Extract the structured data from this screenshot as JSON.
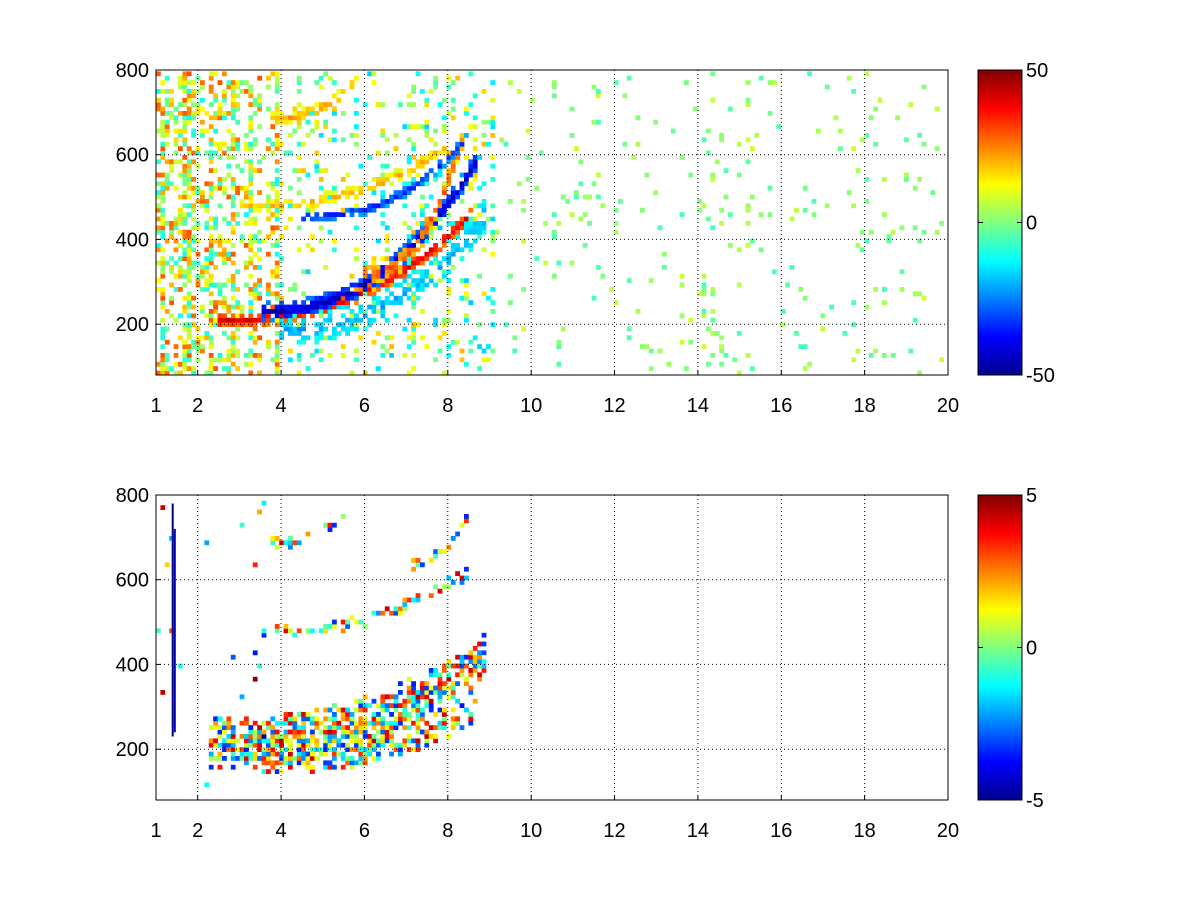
{
  "chart_data": [
    {
      "type": "heatmap",
      "title": "",
      "xlabel": "",
      "ylabel": "",
      "xlim": [
        1,
        20
      ],
      "ylim": [
        80,
        800
      ],
      "grid": true,
      "x_ticks": [
        1,
        2,
        4,
        6,
        8,
        10,
        12,
        14,
        16,
        18,
        20
      ],
      "y_ticks": [
        200,
        400,
        600,
        800
      ],
      "colorbar": {
        "colormap": "jet",
        "range": [
          -50,
          50
        ],
        "ticks": [
          -50,
          0,
          50
        ]
      },
      "background_color": "#ffffff",
      "ridges": [
        {
          "x_start": 2.5,
          "x_end": 8.6,
          "y_start": 210,
          "y_end": 460,
          "value": 40,
          "width": 18,
          "density": 0.95
        },
        {
          "x_start": 3.5,
          "x_end": 8.8,
          "y_start": 232,
          "y_end": 600,
          "value": -45,
          "width": 22,
          "density": 0.95
        },
        {
          "x_start": 4.0,
          "x_end": 9.0,
          "y_start": 190,
          "y_end": 470,
          "value": -20,
          "width": 40,
          "density": 0.55
        },
        {
          "x_start": 6.0,
          "x_end": 8.4,
          "y_start": 320,
          "y_end": 640,
          "value": 30,
          "width": 25,
          "density": 0.85
        },
        {
          "x_start": 3.0,
          "x_end": 8.0,
          "y_start": 480,
          "y_end": 620,
          "value": 20,
          "width": 14,
          "density": 0.7
        },
        {
          "x_start": 4.5,
          "x_end": 8.5,
          "y_start": 455,
          "y_end": 640,
          "value": -35,
          "width": 14,
          "density": 0.8
        },
        {
          "x_start": 3.8,
          "x_end": 5.8,
          "y_start": 690,
          "y_end": 775,
          "value": 22,
          "width": 14,
          "density": 0.8
        }
      ],
      "noise_regions": [
        {
          "x_range": [
            1.0,
            4.0
          ],
          "y_range": [
            80,
            800
          ],
          "value_range": [
            -12,
            30
          ],
          "density": 0.32
        },
        {
          "x_range": [
            4.0,
            9.2
          ],
          "y_range": [
            80,
            800
          ],
          "value_range": [
            -18,
            20
          ],
          "density": 0.12
        },
        {
          "x_range": [
            9.2,
            20.0
          ],
          "y_range": [
            80,
            800
          ],
          "value_range": [
            -6,
            8
          ],
          "density": 0.035
        }
      ]
    },
    {
      "type": "heatmap",
      "title": "",
      "xlabel": "",
      "ylabel": "",
      "xlim": [
        1,
        20
      ],
      "ylim": [
        80,
        800
      ],
      "grid": true,
      "x_ticks": [
        1,
        2,
        4,
        6,
        8,
        10,
        12,
        14,
        16,
        18,
        20
      ],
      "y_ticks": [
        200,
        400,
        600,
        800
      ],
      "colorbar": {
        "colormap": "jet",
        "range": [
          -5,
          5
        ],
        "ticks": [
          -5,
          0,
          5
        ]
      },
      "background_color": "#ffffff",
      "ridges": [
        {
          "x_start": 2.3,
          "x_end": 9.0,
          "y_start": 215,
          "y_end": 420,
          "value": 0.6,
          "width": 60,
          "density": 0.75
        },
        {
          "x_start": 3.5,
          "x_end": 8.8,
          "y_start": 170,
          "y_end": 300,
          "value": 0.6,
          "width": 30,
          "density": 0.6
        },
        {
          "x_start": 3.5,
          "x_end": 8.5,
          "y_start": 480,
          "y_end": 620,
          "value": 0.6,
          "width": 16,
          "density": 0.55
        },
        {
          "x_start": 3.8,
          "x_end": 5.8,
          "y_start": 690,
          "y_end": 780,
          "value": 0.6,
          "width": 14,
          "density": 0.6
        },
        {
          "x_start": 7.0,
          "x_end": 8.6,
          "y_start": 640,
          "y_end": 760,
          "value": 0.6,
          "width": 14,
          "density": 0.5
        }
      ],
      "noise_regions": [
        {
          "x_range": [
            1.0,
            4.0
          ],
          "y_range": [
            80,
            800
          ],
          "value_range": [
            -5,
            5
          ],
          "density": 0.012
        }
      ],
      "lines": [
        {
          "x": 1.4,
          "y_range": [
            230,
            780
          ],
          "value": -5
        },
        {
          "x": 1.45,
          "y_range": [
            240,
            720
          ],
          "value": -4.5
        }
      ]
    }
  ]
}
